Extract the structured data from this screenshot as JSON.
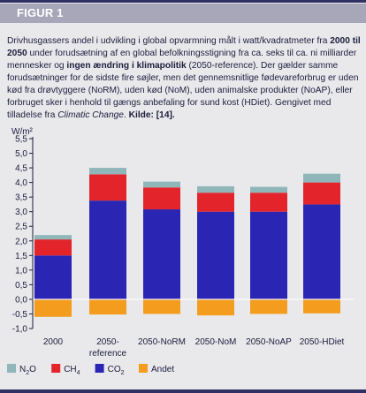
{
  "figure_label": "FIGUR 1",
  "caption": {
    "p1": "Drivhusgassers andel i udvikling i global opvarmning målt i watt/kvadratmeter fra ",
    "b1": "2000 til 2050",
    "p2": " under forudsætning af en global befolkningsstigning fra ca. seks til ca. ni milliarder mennesker og ",
    "b2": "ingen ændring i klimapolitik",
    "p3": " (2050-reference). Der gælder samme forudsætninger for de sidste fire søjler, men det gennemsnitlige fødevareforbrug er uden kød fra drøvtyggere (NoRM), uden kød (NoM), uden animalske produkter (NoAP), eller forbruget sker i henhold til gængs anbefaling for sund kost (HDiet). Gengivet med tilladelse fra ",
    "i1": "Climatic Change",
    "p4": ". ",
    "b3": "Kilde: [14]."
  },
  "chart_data": {
    "type": "bar",
    "stacked": true,
    "ylabel": "W/m²",
    "ylim": [
      -1.0,
      5.5
    ],
    "yticks": [
      -1.0,
      -0.5,
      0.0,
      0.5,
      1.0,
      1.5,
      2.0,
      2.5,
      3.0,
      3.5,
      4.0,
      4.5,
      5.0,
      5.5
    ],
    "ytick_labels": [
      "-1,0",
      "-0,5",
      "0,0",
      "0,5",
      "1,0",
      "1,5",
      "2,0",
      "2,5",
      "3,0",
      "3,5",
      "4,0",
      "4,5",
      "5,0",
      "5,5"
    ],
    "categories": [
      "2000",
      "2050-reference",
      "2050-NoRM",
      "2050-NoM",
      "2050-NoAP",
      "2050-HDiet"
    ],
    "category_labels": [
      [
        "2000"
      ],
      [
        "2050-",
        "reference"
      ],
      [
        "2050-NoRM"
      ],
      [
        "2050-NoM"
      ],
      [
        "2050-NoAP"
      ],
      [
        "2050-HDiet"
      ]
    ],
    "series": [
      {
        "name": "Andet",
        "color": "#f49c1e",
        "values": [
          -0.6,
          -0.52,
          -0.5,
          -0.55,
          -0.5,
          -0.48
        ]
      },
      {
        "name": "CO₂",
        "color": "#2a26b3",
        "values": [
          1.5,
          3.38,
          3.08,
          3.0,
          3.0,
          3.25
        ]
      },
      {
        "name": "CH₄",
        "color": "#e3242b",
        "values": [
          0.55,
          0.9,
          0.75,
          0.65,
          0.65,
          0.75
        ]
      },
      {
        "name": "N₂O",
        "color": "#8fb6b9",
        "values": [
          0.15,
          0.22,
          0.2,
          0.22,
          0.2,
          0.3
        ]
      }
    ],
    "legend": [
      {
        "name": "N",
        "sub": "2",
        "tail": "O",
        "color": "#8fb6b9"
      },
      {
        "name": "CH",
        "sub": "4",
        "tail": "",
        "color": "#e3242b"
      },
      {
        "name": "CO",
        "sub": "2",
        "tail": "",
        "color": "#2a26b3"
      },
      {
        "name": "Andet",
        "sub": "",
        "tail": "",
        "color": "#f49c1e"
      }
    ],
    "legend_position": "bottom-left",
    "zero_line_color": "#ffffff",
    "grid": false
  }
}
